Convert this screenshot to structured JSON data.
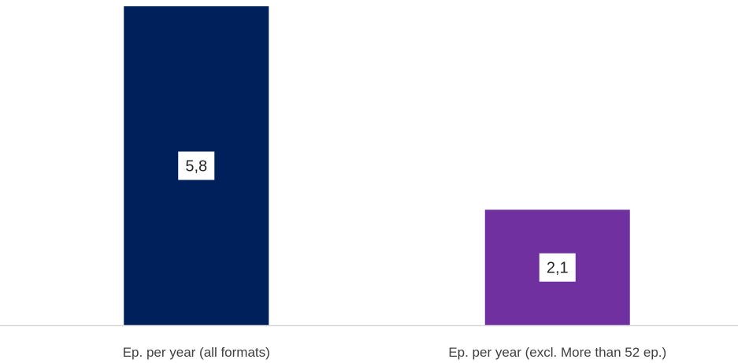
{
  "chart_data": {
    "type": "bar",
    "categories": [
      "Ep. per year (all formats)",
      "Ep. per year (excl. More than 52 ep.)"
    ],
    "values": [
      5.8,
      2.1
    ],
    "data_labels": [
      "5,8",
      "2,1"
    ],
    "colors": [
      "#00205b",
      "#7030a0"
    ],
    "title": "",
    "xlabel": "",
    "ylabel": "",
    "ylim": [
      0,
      5.8
    ],
    "grid": false,
    "legend": "none",
    "axis_color": "#d9d9d9"
  }
}
